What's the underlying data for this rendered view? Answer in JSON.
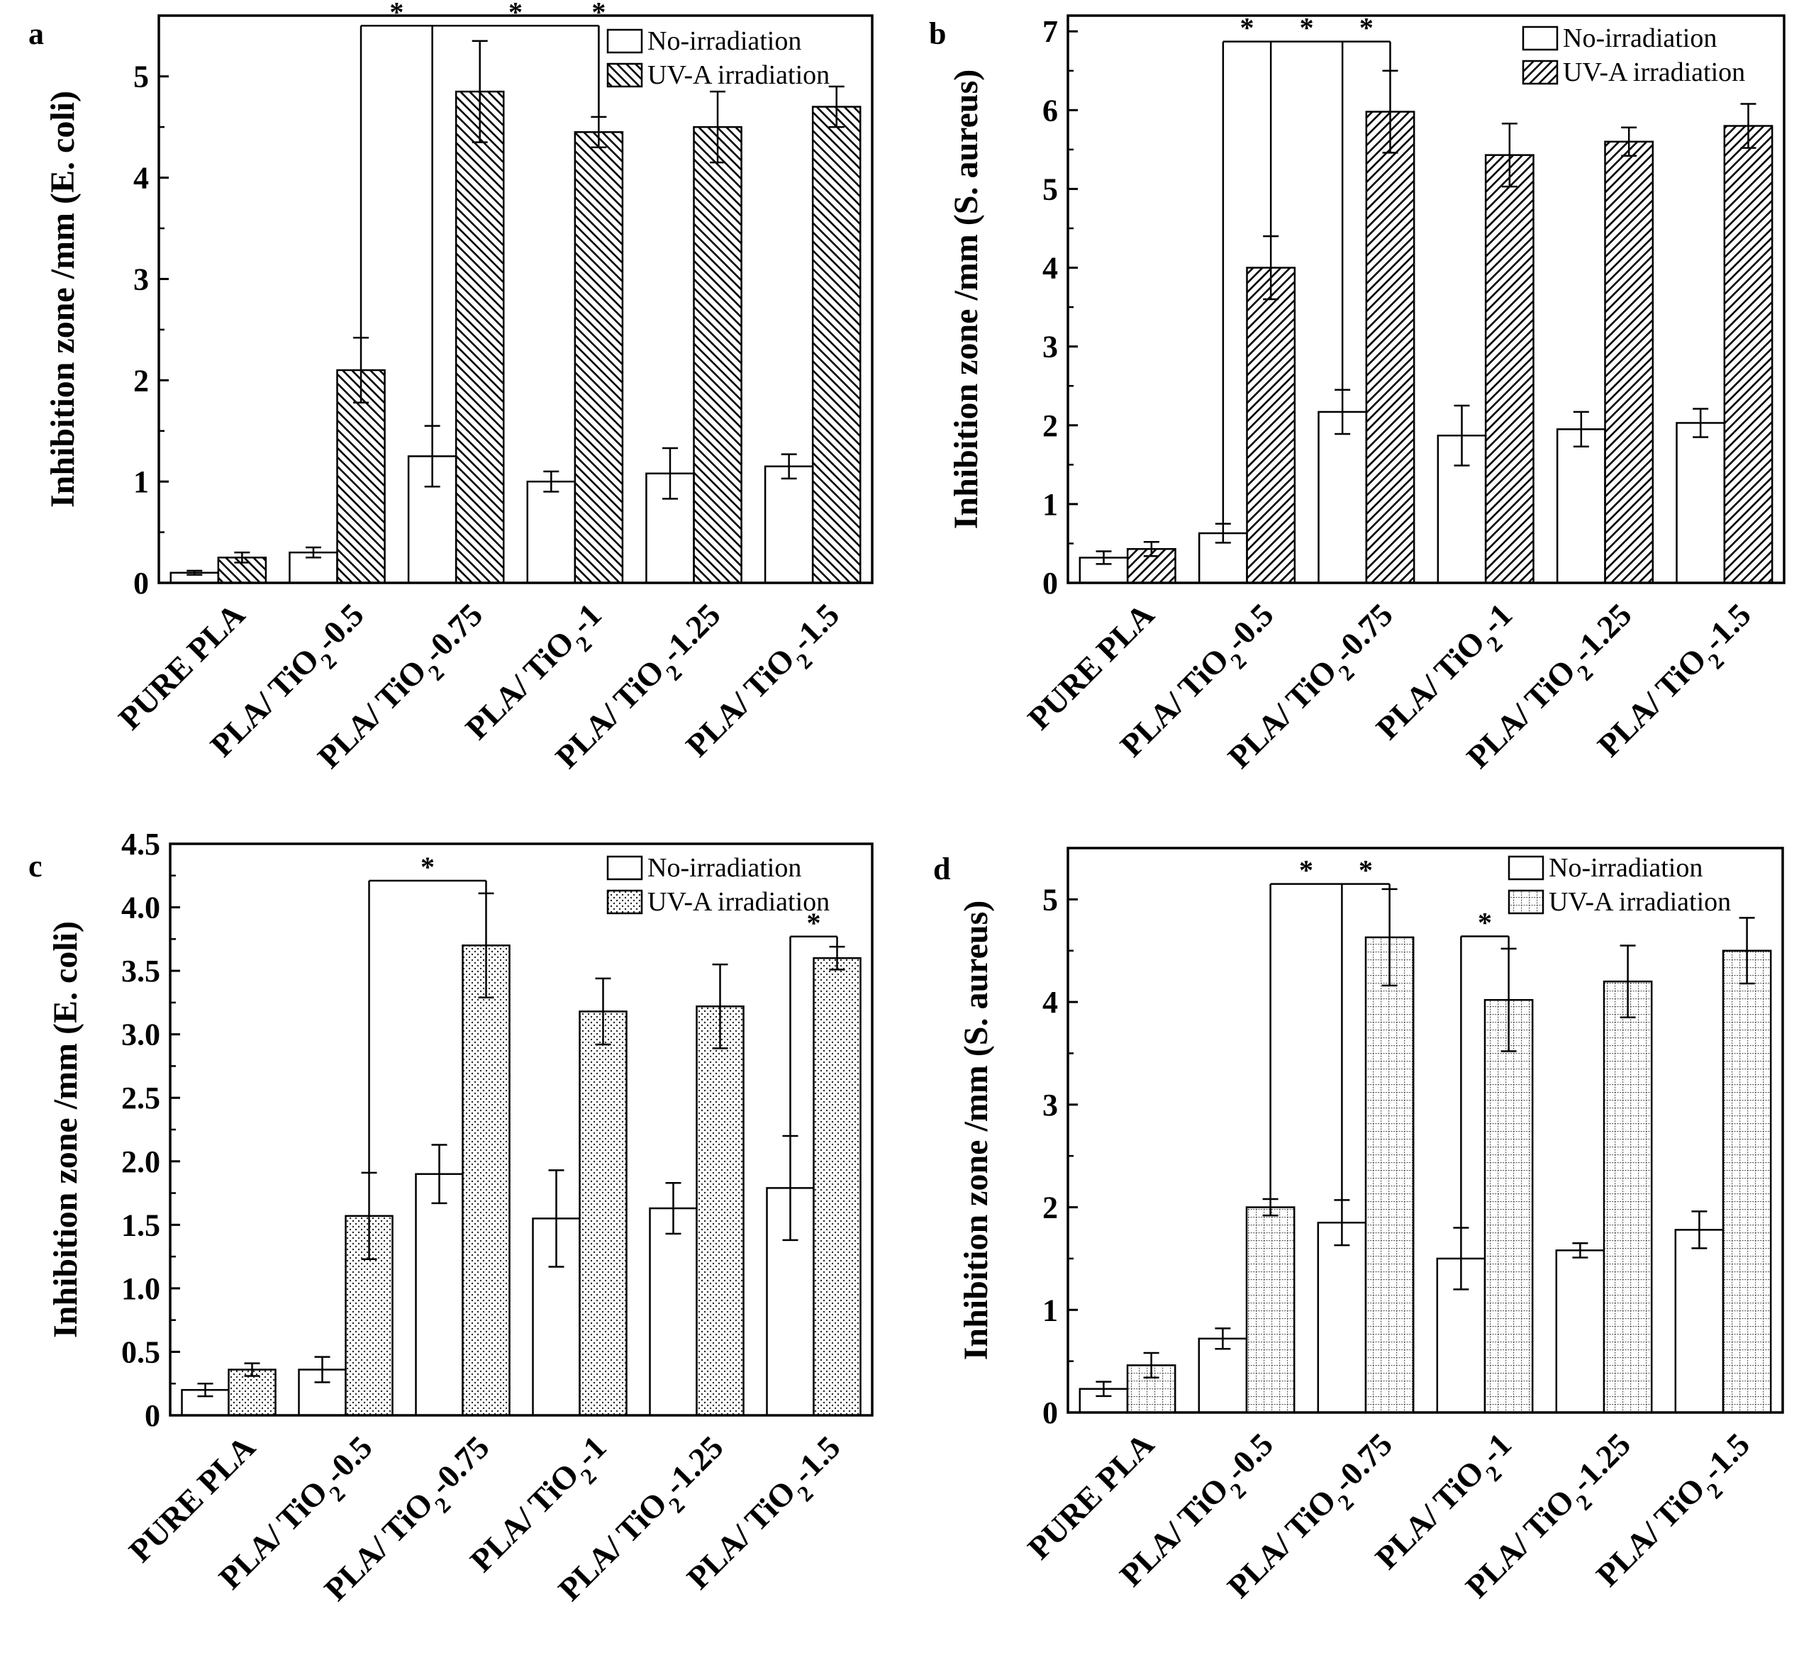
{
  "chart_data": [
    {
      "type": "bar",
      "panel": "a",
      "ylabel": "Inhibition zone /mm  (E. coli)",
      "ylim": [
        0,
        5.6
      ],
      "yticks": [
        0,
        1,
        2,
        3,
        4,
        5
      ],
      "ytick_labels": [
        "0",
        "1",
        "2",
        "3",
        "4",
        "5"
      ],
      "categories": [
        "PURE PLA",
        "PLA/ TiO2-0.5",
        "PLA/ TiO2-0.75",
        "PLA/ TiO2-1",
        "PLA/ TiO2-1.25",
        "PLA/ TiO2-1.5"
      ],
      "pattern": "backslash",
      "legend": [
        "No-irradiation",
        "UV-A irradiation"
      ],
      "series": [
        {
          "name": "No-irradiation",
          "values": [
            0.1,
            0.3,
            1.25,
            1.0,
            1.08,
            1.15
          ],
          "errors": [
            0.02,
            0.05,
            0.3,
            0.1,
            0.25,
            0.12
          ]
        },
        {
          "name": "UV-A irradiation",
          "values": [
            0.25,
            2.1,
            4.85,
            4.45,
            4.5,
            4.7
          ],
          "errors": [
            0.05,
            0.32,
            0.5,
            0.15,
            0.35,
            0.2
          ]
        }
      ],
      "significance": [
        {
          "from": [
            1,
            1
          ],
          "to": [
            3,
            1
          ],
          "y": 5.5,
          "drops": [
            [
              2,
              0
            ],
            [
              3,
              1
            ]
          ],
          "stars": [
            "*",
            "*",
            "*"
          ]
        }
      ]
    },
    {
      "type": "bar",
      "panel": "b",
      "ylabel": "Inhibition zone /mm (S. aureus)",
      "ylim": [
        0,
        7.2
      ],
      "yticks": [
        0,
        1,
        2,
        3,
        4,
        5,
        6,
        7
      ],
      "ytick_labels": [
        "0",
        "1",
        "2",
        "3",
        "4",
        "5",
        "6",
        "7"
      ],
      "categories": [
        "PURE PLA",
        "PLA/ TiO2-0.5",
        "PLA/ TiO2-0.75",
        "PLA/ TiO2-1",
        "PLA/ TiO2-1.25",
        "PLA/ TiO2-1.5"
      ],
      "pattern": "slash",
      "legend": [
        "No-irradiation",
        "UV-A irradiation"
      ],
      "series": [
        {
          "name": "No-irradiation",
          "values": [
            0.32,
            0.63,
            2.17,
            1.87,
            1.95,
            2.03
          ],
          "errors": [
            0.08,
            0.12,
            0.28,
            0.38,
            0.22,
            0.18
          ]
        },
        {
          "name": "UV-A irradiation",
          "values": [
            0.43,
            4.0,
            5.98,
            5.43,
            5.6,
            5.8
          ],
          "errors": [
            0.09,
            0.4,
            0.52,
            0.4,
            0.18,
            0.28
          ]
        }
      ],
      "significance": [
        {
          "from": [
            1,
            0
          ],
          "to": [
            2,
            1
          ],
          "y": 6.87,
          "drops": [
            [
              1,
              1
            ],
            [
              2,
              0
            ]
          ],
          "stars": [
            "*",
            "*",
            "*"
          ]
        }
      ]
    },
    {
      "type": "bar",
      "panel": "c",
      "ylabel": "Inhibition zone /mm  (E. coli)",
      "ylim": [
        0,
        4.5
      ],
      "yticks": [
        0,
        0.5,
        1.0,
        1.5,
        2.0,
        2.5,
        3.0,
        3.5,
        4.0,
        4.5
      ],
      "ytick_labels": [
        "0",
        "0.5",
        "1.0",
        "1.5",
        "2.0",
        "2.5",
        "3.0",
        "3.5",
        "4.0",
        "4.5"
      ],
      "categories": [
        "PURE PLA",
        "PLA/ TiO2-0.5",
        "PLA/ TiO2-0.75",
        "PLA/ TiO2-1",
        "PLA/ TiO2-1.25",
        "PLA/ TiO2-1.5"
      ],
      "pattern": "dots",
      "legend": [
        "No-irradiation",
        "UV-A irradiation"
      ],
      "series": [
        {
          "name": "No-irradiation",
          "values": [
            0.2,
            0.36,
            1.9,
            1.55,
            1.63,
            1.79
          ],
          "errors": [
            0.05,
            0.1,
            0.23,
            0.38,
            0.2,
            0.41
          ]
        },
        {
          "name": "UV-A irradiation",
          "values": [
            0.36,
            1.57,
            3.7,
            3.18,
            3.22,
            3.6
          ],
          "errors": [
            0.05,
            0.34,
            0.41,
            0.26,
            0.33,
            0.09
          ]
        }
      ],
      "significance": [
        {
          "from": [
            1,
            1
          ],
          "to": [
            2,
            1
          ],
          "y": 4.21,
          "drops": [],
          "stars": [
            "*"
          ]
        },
        {
          "from": [
            5,
            0
          ],
          "to": [
            5,
            1
          ],
          "y": 3.77,
          "drops": [],
          "stars": [
            "*"
          ]
        }
      ]
    },
    {
      "type": "bar",
      "panel": "d",
      "ylabel": "Inhibition zone /mm (S. aureus)",
      "ylim": [
        0,
        5.5
      ],
      "yticks": [
        0,
        1,
        2,
        3,
        4,
        5
      ],
      "ytick_labels": [
        "0",
        "1",
        "2",
        "3",
        "4",
        "5"
      ],
      "categories": [
        "PURE PLA",
        "PLA/ TiO2-0.5",
        "PLA/ TiO2-0.75",
        "PLA/ TiO2-1",
        "PLA/ TiO2-1.25",
        "PLA/ TiO2-1.5"
      ],
      "pattern": "grid",
      "legend": [
        "No-irradiation",
        "UV-A irradiation"
      ],
      "series": [
        {
          "name": "No-irradiation",
          "values": [
            0.23,
            0.72,
            1.85,
            1.5,
            1.58,
            1.78
          ],
          "errors": [
            0.07,
            0.1,
            0.22,
            0.3,
            0.07,
            0.18
          ]
        },
        {
          "name": "UV-A irradiation",
          "values": [
            0.46,
            2.0,
            4.63,
            4.02,
            4.2,
            4.5
          ],
          "errors": [
            0.12,
            0.08,
            0.47,
            0.5,
            0.35,
            0.32
          ]
        }
      ],
      "significance": [
        {
          "from": [
            1,
            1
          ],
          "to": [
            2,
            1
          ],
          "y": 5.15,
          "drops": [
            [
              2,
              0
            ]
          ],
          "stars": [
            "*",
            "*"
          ]
        },
        {
          "from": [
            3,
            0
          ],
          "to": [
            3,
            1
          ],
          "y": 4.64,
          "drops": [],
          "stars": [
            "*"
          ]
        }
      ]
    }
  ]
}
